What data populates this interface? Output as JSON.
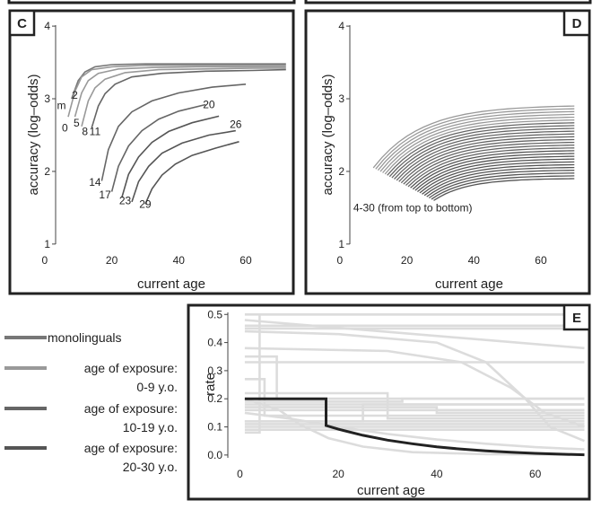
{
  "colors": {
    "monolingual": "#777777",
    "age_0_9": "#999999",
    "age_10_19": "#666666",
    "age_20_30": "#555555",
    "rate_background": "#dcdcdc",
    "rate_highlight": "#222222"
  },
  "legend": {
    "items": [
      {
        "key": "monolingual",
        "label_lines": [
          "monolinguals"
        ]
      },
      {
        "key": "age_0_9",
        "label_lines": [
          "age of exposure:",
          "0-9 y.o."
        ]
      },
      {
        "key": "age_10_19",
        "label_lines": [
          "age of exposure:",
          "10-19 y.o."
        ]
      },
      {
        "key": "age_20_30",
        "label_lines": [
          "age of exposure:",
          "20-30 y.o."
        ]
      }
    ]
  },
  "chart_data": [
    {
      "id": "C",
      "type": "line",
      "tag": "C",
      "xlabel": "current age",
      "ylabel": "accuracy (log–odds)",
      "xlim": [
        -8,
        75
      ],
      "ylim": [
        0.85,
        4.1
      ],
      "xticks": [
        0,
        20,
        40,
        60
      ],
      "yticks": [
        1,
        2,
        3,
        4
      ],
      "grid": false,
      "curve_labels": [
        {
          "text": "m",
          "x": 5,
          "y": 2.86
        },
        {
          "text": "2",
          "x": 9,
          "y": 3.0
        },
        {
          "text": "0",
          "x": 6,
          "y": 2.55
        },
        {
          "text": "5",
          "x": 9.5,
          "y": 2.62
        },
        {
          "text": "8",
          "x": 12,
          "y": 2.5
        },
        {
          "text": "11",
          "x": 15,
          "y": 2.5
        },
        {
          "text": "14",
          "x": 15,
          "y": 1.8
        },
        {
          "text": "17",
          "x": 18,
          "y": 1.63
        },
        {
          "text": "20",
          "x": 49,
          "y": 2.87
        },
        {
          "text": "23",
          "x": 24,
          "y": 1.55
        },
        {
          "text": "26",
          "x": 57,
          "y": 2.6
        },
        {
          "text": "29",
          "x": 30,
          "y": 1.5
        }
      ],
      "series": [
        {
          "group": "monolingual",
          "x": [
            8,
            10,
            12,
            15,
            20,
            30,
            45,
            60,
            72
          ],
          "y": [
            3.0,
            3.25,
            3.37,
            3.44,
            3.47,
            3.48,
            3.48,
            3.48,
            3.48
          ]
        },
        {
          "group": "age_0_9",
          "x": [
            7,
            9,
            11,
            14,
            20,
            30,
            45,
            60,
            72
          ],
          "y": [
            2.75,
            3.1,
            3.3,
            3.4,
            3.44,
            3.46,
            3.46,
            3.46,
            3.46
          ]
        },
        {
          "group": "age_0_9",
          "x": [
            9,
            11,
            13,
            16,
            22,
            32,
            45,
            60,
            72
          ],
          "y": [
            2.75,
            3.08,
            3.25,
            3.35,
            3.41,
            3.43,
            3.44,
            3.44,
            3.44
          ]
        },
        {
          "group": "age_0_9",
          "x": [
            11,
            13,
            15,
            18,
            24,
            34,
            48,
            62,
            72
          ],
          "y": [
            2.62,
            2.97,
            3.15,
            3.27,
            3.36,
            3.4,
            3.41,
            3.42,
            3.42
          ]
        },
        {
          "group": "age_10_19",
          "x": [
            14,
            16,
            18,
            21,
            26,
            35,
            48,
            62,
            72
          ],
          "y": [
            2.6,
            2.9,
            3.07,
            3.2,
            3.3,
            3.35,
            3.38,
            3.39,
            3.4
          ]
        },
        {
          "group": "age_10_19",
          "x": [
            17,
            19,
            22,
            26,
            32,
            40,
            50,
            60
          ],
          "y": [
            1.87,
            2.3,
            2.62,
            2.82,
            2.97,
            3.08,
            3.16,
            3.2
          ]
        },
        {
          "group": "age_10_19",
          "x": [
            20,
            22,
            25,
            29,
            34,
            40,
            48
          ],
          "y": [
            1.72,
            2.07,
            2.35,
            2.56,
            2.72,
            2.83,
            2.92
          ]
        },
        {
          "group": "age_20_30",
          "x": [
            23,
            25,
            28,
            32,
            37,
            44,
            52
          ],
          "y": [
            1.64,
            1.96,
            2.2,
            2.4,
            2.55,
            2.67,
            2.76
          ]
        },
        {
          "group": "age_20_30",
          "x": [
            26,
            28,
            31,
            35,
            41,
            49,
            57
          ],
          "y": [
            1.58,
            1.86,
            2.07,
            2.25,
            2.39,
            2.5,
            2.56
          ]
        },
        {
          "group": "age_20_30",
          "x": [
            30,
            32,
            35,
            39,
            44,
            51,
            58
          ],
          "y": [
            1.55,
            1.76,
            1.95,
            2.1,
            2.22,
            2.32,
            2.41
          ]
        }
      ]
    },
    {
      "id": "D",
      "type": "line",
      "tag": "D",
      "xlabel": "current age",
      "ylabel": "accuracy (log–odds)",
      "xlim": [
        -8,
        75
      ],
      "ylim": [
        0.85,
        4.1
      ],
      "xticks": [
        0,
        20,
        40,
        60
      ],
      "yticks": [
        1,
        2,
        3,
        4
      ],
      "grid": false,
      "annotation": {
        "text": "4-30 (from top to bottom)",
        "x": 4,
        "y": 1.45
      },
      "family": {
        "first_age": 4,
        "last_age": 30,
        "x_end": 70,
        "start_y_top": 2.05,
        "start_y_bottom": 1.6,
        "end_y_top": 2.9,
        "end_y_bottom": 1.9,
        "groups": [
          {
            "from": 4,
            "to": 9,
            "group": "age_0_9"
          },
          {
            "from": 10,
            "to": 19,
            "group": "age_10_19"
          },
          {
            "from": 20,
            "to": 30,
            "group": "age_20_30"
          }
        ]
      }
    },
    {
      "id": "E",
      "type": "line",
      "tag": "E",
      "xlabel": "current age",
      "ylabel": "rate",
      "xlim": [
        -3,
        71
      ],
      "ylim": [
        -0.01,
        0.52
      ],
      "xticks": [
        0,
        20,
        40,
        60
      ],
      "yticks": [
        0.0,
        0.1,
        0.2,
        0.3,
        0.4,
        0.5
      ],
      "ytick_labels": [
        "0.0",
        "0.1",
        "0.2",
        "0.3",
        "0.4",
        "0.5"
      ],
      "grid": false,
      "highlight": {
        "x": [
          1,
          17.5,
          17.5,
          20,
          25,
          30,
          35,
          40,
          45,
          50,
          55,
          60,
          65,
          70
        ],
        "y": [
          0.2,
          0.2,
          0.105,
          0.092,
          0.07,
          0.053,
          0.04,
          0.029,
          0.021,
          0.015,
          0.01,
          0.006,
          0.003,
          0.001
        ]
      },
      "background_series": [
        {
          "x": [
            1,
            70
          ],
          "y": [
            0.5,
            0.5
          ]
        },
        {
          "x": [
            1,
            70
          ],
          "y": [
            0.48,
            0.38
          ]
        },
        {
          "x": [
            1,
            70
          ],
          "y": [
            0.46,
            0.46
          ]
        },
        {
          "x": [
            1,
            70
          ],
          "y": [
            0.45,
            0.45
          ]
        },
        {
          "x": [
            1,
            20,
            40,
            50,
            58,
            63,
            70
          ],
          "y": [
            0.44,
            0.43,
            0.4,
            0.33,
            0.2,
            0.1,
            0.05
          ]
        },
        {
          "x": [
            1,
            30,
            45,
            55,
            62,
            70
          ],
          "y": [
            0.38,
            0.37,
            0.33,
            0.24,
            0.15,
            0.1
          ]
        },
        {
          "x": [
            1,
            70
          ],
          "y": [
            0.33,
            0.33
          ]
        },
        {
          "x": [
            1,
            7.5,
            7.5,
            70
          ],
          "y": [
            0.35,
            0.35,
            0.2,
            0.2
          ]
        },
        {
          "x": [
            1,
            5,
            5,
            70
          ],
          "y": [
            0.27,
            0.27,
            0.14,
            0.14
          ]
        },
        {
          "x": [
            1,
            4,
            4,
            70
          ],
          "y": [
            0.08,
            0.08,
            0.5,
            0.5
          ]
        },
        {
          "x": [
            1,
            30,
            30,
            70
          ],
          "y": [
            0.22,
            0.22,
            0.13,
            0.13
          ]
        },
        {
          "x": [
            1,
            25,
            25,
            70
          ],
          "y": [
            0.12,
            0.12,
            0.18,
            0.18
          ]
        },
        {
          "x": [
            1,
            40,
            40,
            70
          ],
          "y": [
            0.17,
            0.17,
            0.15,
            0.15
          ]
        },
        {
          "x": [
            1,
            33,
            33,
            70
          ],
          "y": [
            0.19,
            0.19,
            0.2,
            0.2
          ]
        },
        {
          "x": [
            1,
            70
          ],
          "y": [
            0.2,
            0.2
          ]
        },
        {
          "x": [
            1,
            70
          ],
          "y": [
            0.16,
            0.16
          ]
        },
        {
          "x": [
            1,
            70
          ],
          "y": [
            0.12,
            0.12
          ]
        },
        {
          "x": [
            1,
            70
          ],
          "y": [
            0.11,
            0.11
          ]
        },
        {
          "x": [
            1,
            70
          ],
          "y": [
            0.09,
            0.09
          ]
        },
        {
          "x": [
            1,
            8,
            12,
            18,
            25,
            35,
            50,
            70
          ],
          "y": [
            0.2,
            0.16,
            0.11,
            0.06,
            0.03,
            0.01,
            0.003,
            0.001
          ]
        },
        {
          "x": [
            1,
            10,
            20,
            30,
            40,
            50,
            60,
            70
          ],
          "y": [
            0.15,
            0.13,
            0.1,
            0.075,
            0.055,
            0.04,
            0.028,
            0.02
          ]
        },
        {
          "x": [
            1,
            70
          ],
          "y": [
            0.1,
            0.1
          ]
        },
        {
          "x": [
            1,
            70
          ],
          "y": [
            0.18,
            0.18
          ]
        }
      ]
    }
  ]
}
